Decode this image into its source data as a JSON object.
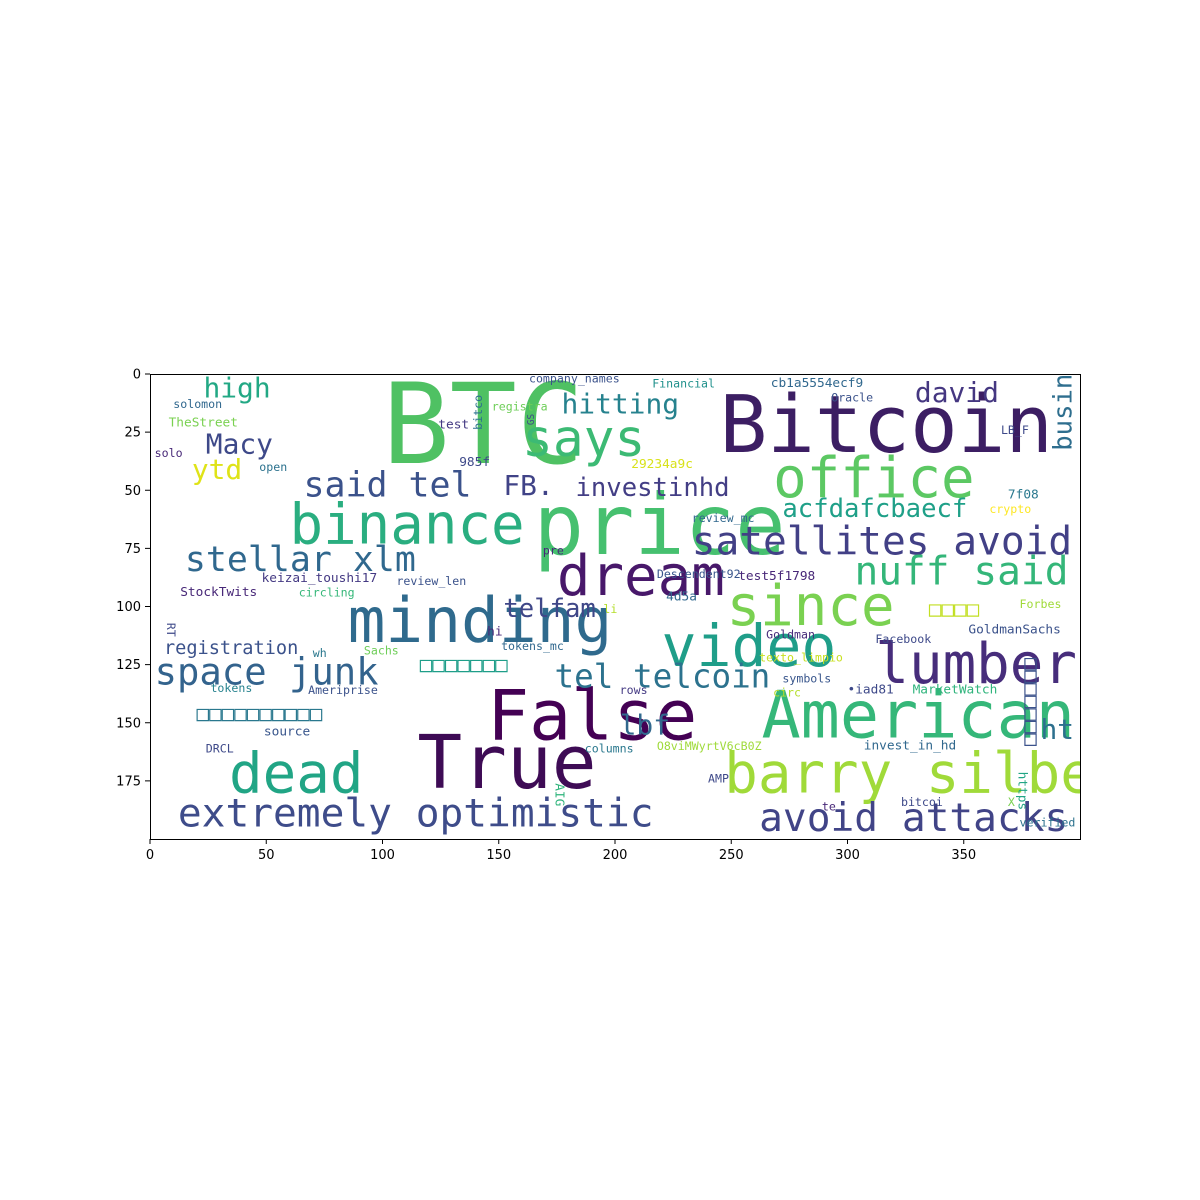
{
  "axes": {
    "x_ticks": [
      0,
      50,
      100,
      150,
      200,
      250,
      300,
      350
    ],
    "y_ticks": [
      0,
      25,
      50,
      75,
      100,
      125,
      150,
      175
    ],
    "xlim": [
      0,
      400
    ],
    "ylim": [
      0,
      200
    ],
    "y_inverted": true,
    "grid": false
  },
  "words": [
    {
      "text": "BTC",
      "x": 100,
      "y": 22,
      "size": 48,
      "color": "#4fc163"
    },
    {
      "text": "Bitcoin",
      "x": 245,
      "y": 22,
      "size": 34,
      "color": "#3c1e63"
    },
    {
      "text": "price",
      "x": 165,
      "y": 65,
      "size": 36,
      "color": "#46c06f"
    },
    {
      "text": "binance",
      "x": 60,
      "y": 65,
      "size": 24,
      "color": "#2aae80"
    },
    {
      "text": "says",
      "x": 160,
      "y": 28,
      "size": 22,
      "color": "#3cba74"
    },
    {
      "text": "office",
      "x": 268,
      "y": 45,
      "size": 24,
      "color": "#5cc863"
    },
    {
      "text": "dream",
      "x": 175,
      "y": 87,
      "size": 24,
      "color": "#48186a"
    },
    {
      "text": "minding",
      "x": 85,
      "y": 106,
      "size": 27,
      "color": "#2f6a8d"
    },
    {
      "text": "since",
      "x": 248,
      "y": 100,
      "size": 24,
      "color": "#7ad151"
    },
    {
      "text": "video",
      "x": 220,
      "y": 117,
      "size": 25,
      "color": "#1f9e89"
    },
    {
      "text": "lumber",
      "x": 312,
      "y": 125,
      "size": 24,
      "color": "#472d7b"
    },
    {
      "text": "False",
      "x": 145,
      "y": 147,
      "size": 30,
      "color": "#440154"
    },
    {
      "text": "American",
      "x": 263,
      "y": 147,
      "size": 28,
      "color": "#35b779"
    },
    {
      "text": "True",
      "x": 115,
      "y": 167,
      "size": 32,
      "color": "#3e0b55"
    },
    {
      "text": "dead",
      "x": 34,
      "y": 172,
      "size": 24,
      "color": "#21a585"
    },
    {
      "text": "barry silbert",
      "x": 247,
      "y": 172,
      "size": 24,
      "color": "#a0da39"
    },
    {
      "text": "extremely optimistic",
      "x": 12,
      "y": 189,
      "size": 17,
      "color": "#3e4c8a"
    },
    {
      "text": "avoid attacks",
      "x": 262,
      "y": 191,
      "size": 17,
      "color": "#414487"
    },
    {
      "text": "satellites avoid",
      "x": 233,
      "y": 72,
      "size": 17,
      "color": "#424086"
    },
    {
      "text": "nuff said",
      "x": 303,
      "y": 85,
      "size": 17,
      "color": "#34b679"
    },
    {
      "text": "stellar xlm",
      "x": 15,
      "y": 80,
      "size": 15,
      "color": "#30688e"
    },
    {
      "text": "space junk",
      "x": 2,
      "y": 128,
      "size": 16,
      "color": "#33638d"
    },
    {
      "text": "tel telcoin",
      "x": 174,
      "y": 130,
      "size": 14,
      "color": "#2c728e"
    },
    {
      "text": "said tel",
      "x": 66,
      "y": 48,
      "size": 15,
      "color": "#3b528b"
    },
    {
      "text": "FB.",
      "x": 152,
      "y": 48,
      "size": 12,
      "color": "#404387"
    },
    {
      "text": "investinhd",
      "x": 183,
      "y": 49,
      "size": 11,
      "color": "#433e85"
    },
    {
      "text": "hitting",
      "x": 177,
      "y": 13,
      "size": 12,
      "color": "#26828e"
    },
    {
      "text": "high",
      "x": 23,
      "y": 6,
      "size": 12,
      "color": "#22a884"
    },
    {
      "text": "Macy",
      "x": 24,
      "y": 30,
      "size": 12,
      "color": "#3e4989"
    },
    {
      "text": "ytd",
      "x": 18,
      "y": 41,
      "size": 12,
      "color": "#dfe318"
    },
    {
      "text": "david",
      "x": 329,
      "y": 8,
      "size": 12,
      "color": "#453781"
    },
    {
      "text": "acfdafcbaecf",
      "x": 272,
      "y": 58,
      "size": 11,
      "color": "#1fa088"
    },
    {
      "text": "telfam",
      "x": 152,
      "y": 101,
      "size": 11,
      "color": "#3f4788"
    },
    {
      "text": "lbf",
      "x": 202,
      "y": 151,
      "size": 12,
      "color": "#31688e"
    },
    {
      "text": "ht",
      "x": 383,
      "y": 153,
      "size": 12,
      "color": "#2d708e"
    },
    {
      "text": "business",
      "x": 393,
      "y": 33,
      "size": 11,
      "color": "#2e6e8e",
      "rotate": -90
    },
    {
      "text": "registration",
      "x": 6,
      "y": 118,
      "size": 8,
      "color": "#3b528b"
    },
    {
      "text": "company_names",
      "x": 163,
      "y": 2,
      "size": 5,
      "color": "#3b528b"
    },
    {
      "text": "Financial",
      "x": 216,
      "y": 4,
      "size": 5,
      "color": "#21918c"
    },
    {
      "text": "cb1a5554ecf9",
      "x": 267,
      "y": 4,
      "size": 5.5,
      "color": "#31688e"
    },
    {
      "text": "solomon",
      "x": 10,
      "y": 13,
      "size": 5,
      "color": "#31688e"
    },
    {
      "text": "registra",
      "x": 147,
      "y": 14,
      "size": 5,
      "color": "#6ece58"
    },
    {
      "text": "Oracle",
      "x": 293,
      "y": 10,
      "size": 5,
      "color": "#3b528b"
    },
    {
      "text": "TheStreet",
      "x": 8,
      "y": 21,
      "size": 5.5,
      "color": "#7ad151"
    },
    {
      "text": "test",
      "x": 124,
      "y": 22,
      "size": 5.5,
      "color": "#443a83"
    },
    {
      "text": "LB_F",
      "x": 366,
      "y": 24,
      "size": 5,
      "color": "#3e4989"
    },
    {
      "text": "solo",
      "x": 2,
      "y": 34,
      "size": 5,
      "color": "#482878"
    },
    {
      "text": "open",
      "x": 47,
      "y": 40,
      "size": 5,
      "color": "#2c728e"
    },
    {
      "text": "985f",
      "x": 133,
      "y": 38,
      "size": 5.5,
      "color": "#3e4989"
    },
    {
      "text": "29234a9c",
      "x": 207,
      "y": 39,
      "size": 5.5,
      "color": "#d8e219"
    },
    {
      "text": "7f08",
      "x": 369,
      "y": 52,
      "size": 5.5,
      "color": "#2a788e"
    },
    {
      "text": "crypto",
      "x": 361,
      "y": 58,
      "size": 5,
      "color": "#fde725"
    },
    {
      "text": "review_mc",
      "x": 233,
      "y": 62,
      "size": 5,
      "color": "#31688e"
    },
    {
      "text": "pre",
      "x": 169,
      "y": 76,
      "size": 5,
      "color": "#482878"
    },
    {
      "text": "test5f1798",
      "x": 253,
      "y": 87,
      "size": 5.5,
      "color": "#482878"
    },
    {
      "text": "Descendent92",
      "x": 218,
      "y": 86,
      "size": 5,
      "color": "#39568c"
    },
    {
      "text": "keizai_toushi17",
      "x": 48,
      "y": 88,
      "size": 5.5,
      "color": "#443983"
    },
    {
      "text": "review_len",
      "x": 106,
      "y": 89,
      "size": 5,
      "color": "#3b528b"
    },
    {
      "text": "StockTwits",
      "x": 13,
      "y": 94,
      "size": 5.5,
      "color": "#482878"
    },
    {
      "text": "circling",
      "x": 64,
      "y": 94,
      "size": 5,
      "color": "#35b779"
    },
    {
      "text": "4d5a",
      "x": 222,
      "y": 96,
      "size": 5.5,
      "color": "#31688e"
    },
    {
      "text": "Forbes",
      "x": 374,
      "y": 99,
      "size": 5,
      "color": "#a0da39"
    },
    {
      "text": "li",
      "x": 195,
      "y": 101,
      "size": 5,
      "color": "#b5de2b"
    },
    {
      "text": "hi",
      "x": 145,
      "y": 111,
      "size": 5.5,
      "color": "#482878"
    },
    {
      "text": "Goldman",
      "x": 265,
      "y": 112,
      "size": 5,
      "color": "#472c7a"
    },
    {
      "text": "Facebook",
      "x": 312,
      "y": 114,
      "size": 5,
      "color": "#3e4989"
    },
    {
      "text": "GoldmanSachs",
      "x": 352,
      "y": 110,
      "size": 5.5,
      "color": "#3b528b"
    },
    {
      "text": "tokens_mc",
      "x": 151,
      "y": 117,
      "size": 5,
      "color": "#31688e"
    },
    {
      "text": "Sachs",
      "x": 92,
      "y": 119,
      "size": 5,
      "color": "#6ece58"
    },
    {
      "text": "wh",
      "x": 70,
      "y": 120,
      "size": 5,
      "color": "#2a788e"
    },
    {
      "text": "texto_limpio",
      "x": 262,
      "y": 122,
      "size": 5,
      "color": "#c8e020"
    },
    {
      "text": "tokens",
      "x": 26,
      "y": 135,
      "size": 5,
      "color": "#26828e"
    },
    {
      "text": "Ameriprise",
      "x": 68,
      "y": 136,
      "size": 5,
      "color": "#3b528b"
    },
    {
      "text": "rows",
      "x": 202,
      "y": 136,
      "size": 5,
      "color": "#443a83"
    },
    {
      "text": "circ",
      "x": 268,
      "y": 137,
      "size": 5,
      "color": "#b5de2b"
    },
    {
      "text": "symbols",
      "x": 272,
      "y": 131,
      "size": 5,
      "color": "#39568c"
    },
    {
      "text": "•iad81",
      "x": 300,
      "y": 136,
      "size": 5.5,
      "color": "#3e4989"
    },
    {
      "text": "MarketWatch",
      "x": 328,
      "y": 136,
      "size": 5.5,
      "color": "#2fb47c"
    },
    {
      "text": "source",
      "x": 49,
      "y": 154,
      "size": 5.5,
      "color": "#39568c"
    },
    {
      "text": "DRCL",
      "x": 24,
      "y": 161,
      "size": 5,
      "color": "#3e4989"
    },
    {
      "text": "columns",
      "x": 187,
      "y": 161,
      "size": 5,
      "color": "#2a788e"
    },
    {
      "text": "O8viMWyrtV6cB0Z",
      "x": 218,
      "y": 160,
      "size": 5,
      "color": "#9fda3a"
    },
    {
      "text": "invest_in_hd",
      "x": 307,
      "y": 160,
      "size": 5.5,
      "color": "#31688e"
    },
    {
      "text": "AMP",
      "x": 240,
      "y": 174,
      "size": 5,
      "color": "#3e4989"
    },
    {
      "text": "bitcoi",
      "x": 323,
      "y": 184,
      "size": 5,
      "color": "#3e4989"
    },
    {
      "text": "te",
      "x": 289,
      "y": 186,
      "size": 5,
      "color": "#482878"
    },
    {
      "text": "X",
      "x": 369,
      "y": 184,
      "size": 5,
      "color": "#7ad151"
    },
    {
      "text": "verified",
      "x": 374,
      "y": 193,
      "size": 5,
      "color": "#2c728e"
    },
    {
      "text": "https",
      "x": 375,
      "y": 171,
      "size": 5.5,
      "color": "#21a585",
      "rotate": 90
    },
    {
      "text": "bitco",
      "x": 141,
      "y": 24,
      "size": 5,
      "color": "#2c728e",
      "rotate": -90
    },
    {
      "text": "AIG",
      "x": 176,
      "y": 176,
      "size": 5.5,
      "color": "#2fb47c",
      "rotate": 90
    },
    {
      "text": "RT",
      "x": 9,
      "y": 107,
      "size": 5,
      "color": "#3e4989",
      "rotate": 90
    },
    {
      "text": "GS",
      "x": 164,
      "y": 22,
      "size": 4,
      "color": "#3e4989",
      "rotate": -90
    },
    {
      "text": "□□□□□□□",
      "x": 116,
      "y": 125,
      "size": 9,
      "color": "#1f9e89"
    },
    {
      "text": "□□□□□□□□□□",
      "x": 20,
      "y": 146,
      "size": 9,
      "color": "#2a788e"
    },
    {
      "text": "□□□□",
      "x": 335,
      "y": 101,
      "size": 9,
      "color": "#c2df23"
    },
    {
      "text": "□□□□□□□",
      "x": 378,
      "y": 160,
      "size": 9,
      "color": "#3b528b",
      "rotate": -90
    }
  ]
}
